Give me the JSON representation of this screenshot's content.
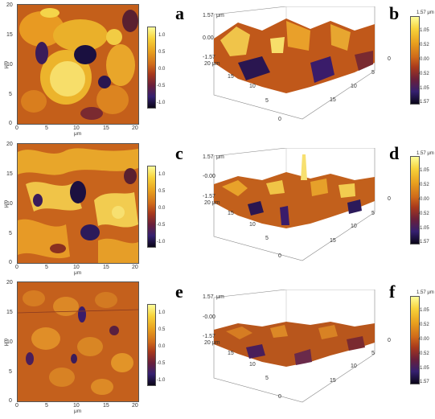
{
  "panels": [
    {
      "id": "a",
      "label": "a",
      "x_ticks": [
        "0",
        "5",
        "10",
        "15",
        "20"
      ],
      "y_ticks": [
        "0",
        "5",
        "10",
        "15",
        "20"
      ],
      "x_unit": "μm",
      "y_unit": "μm",
      "colorbar_ticks": [
        "1.0",
        "0.5",
        "0.0",
        "-0.5",
        "-1.0"
      ]
    },
    {
      "id": "b",
      "label": "b",
      "z_ticks": [
        "1.57",
        "0.00",
        "-1.57"
      ],
      "z_unit": "μm",
      "axis_top_label": "20 μm",
      "front_axis_ticks": [
        "15",
        "10",
        "5",
        "0"
      ],
      "right_axis_ticks": [
        "0",
        "5",
        "10",
        "15"
      ],
      "colorbar_ticks": [
        "1.57 μm",
        "1.05",
        "0.52",
        "0.00",
        "-0.52",
        "-1.05",
        "-1.57"
      ]
    },
    {
      "id": "c",
      "label": "c",
      "x_ticks": [
        "0",
        "5",
        "10",
        "15",
        "20"
      ],
      "y_ticks": [
        "0",
        "5",
        "10",
        "15",
        "20"
      ],
      "x_unit": "μm",
      "y_unit": "μm",
      "colorbar_ticks": [
        "1.0",
        "0.5",
        "0.0",
        "-0.5",
        "-1.0"
      ]
    },
    {
      "id": "d",
      "label": "d",
      "z_ticks": [
        "1.57",
        "-0.00",
        "-1.57"
      ],
      "z_unit": "μm",
      "axis_top_label": "20 μm",
      "front_axis_ticks": [
        "15",
        "10",
        "5",
        "0"
      ],
      "right_axis_ticks": [
        "0",
        "5",
        "10",
        "15"
      ],
      "colorbar_ticks": [
        "1.57 μm",
        "1.05",
        "0.52",
        "-0.00",
        "-0.52",
        "-1.05",
        "-1.57"
      ]
    },
    {
      "id": "e",
      "label": "e",
      "x_ticks": [
        "0",
        "5",
        "10",
        "15",
        "20"
      ],
      "y_ticks": [
        "0",
        "5",
        "10",
        "15",
        "20"
      ],
      "x_unit": "μm",
      "y_unit": "μm",
      "colorbar_ticks": [
        "1.0",
        "0.5",
        "0.0",
        "-0.5",
        "-1.0"
      ]
    },
    {
      "id": "f",
      "label": "f",
      "z_ticks": [
        "1.57",
        "-0.00",
        "-1.57"
      ],
      "z_unit": "μm",
      "axis_top_label": "20 μm",
      "front_axis_ticks": [
        "15",
        "10",
        "5",
        "0"
      ],
      "right_axis_ticks": [
        "0",
        "5",
        "10",
        "15"
      ],
      "colorbar_ticks": [
        "1.57 μm",
        "1.05",
        "0.52",
        "-0.00",
        "-0.52",
        "-1.05",
        "-1.57"
      ]
    }
  ],
  "colormap": {
    "high": "#fdfd9a",
    "upper": "#f7d23a",
    "mid_high": "#e8a01e",
    "mid": "#cf6b1a",
    "mid_low": "#a8391c",
    "low": "#6a1f3a",
    "lower": "#352070",
    "lowest": "#0a0618"
  }
}
